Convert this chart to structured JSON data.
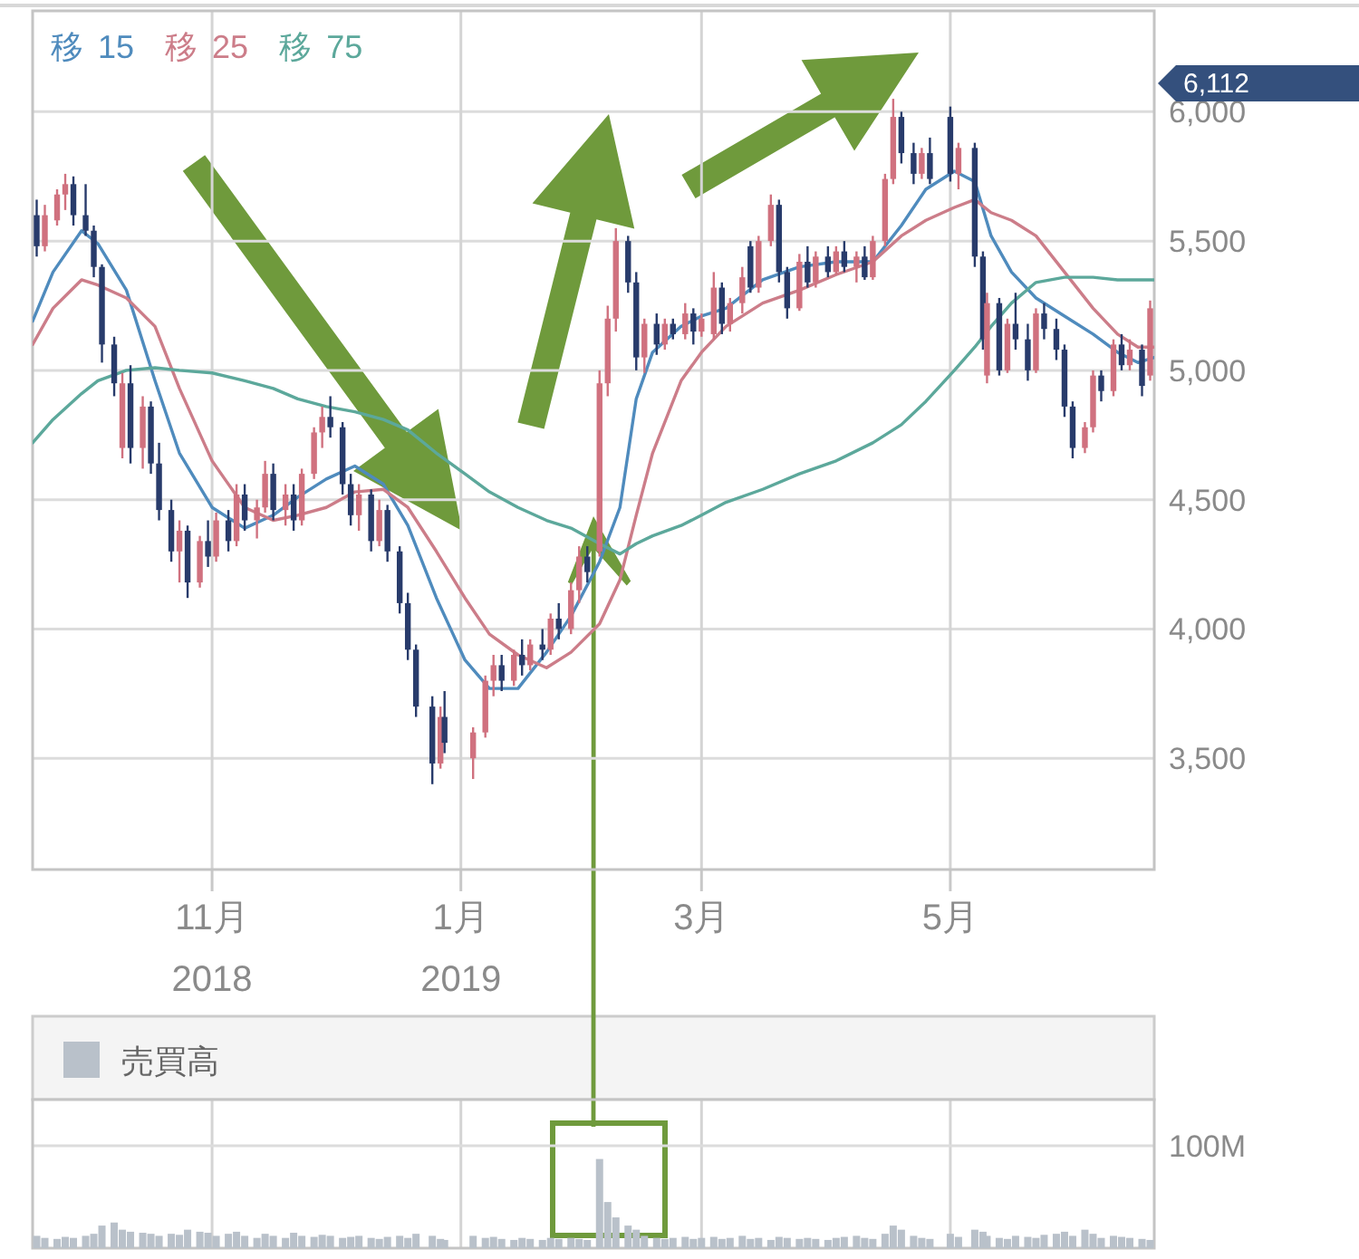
{
  "chart_data": [
    {
      "type": "candlestick",
      "legend": "top left",
      "grid": true,
      "xlim": [
        "2018-09-18",
        "2019-06-20"
      ],
      "xticks": [
        {
          "value": "2018-11-01",
          "label": "11月\n2018"
        },
        {
          "value": "2019-01-01",
          "label": "1月\n2019"
        },
        {
          "value": "2019-03-01",
          "label": "3月"
        },
        {
          "value": "2019-05-01",
          "label": "5月"
        }
      ],
      "ylim": [
        3070,
        6390
      ],
      "yticks": [
        {
          "value": 3500,
          "label": "3,500"
        },
        {
          "value": 4000,
          "label": "4,000"
        },
        {
          "value": 4500,
          "label": "4,500"
        },
        {
          "value": 5000,
          "label": "5,000"
        },
        {
          "value": 5500,
          "label": "5,500"
        },
        {
          "value": 6000,
          "label": "6,000"
        }
      ],
      "annotations": [
        "6,112"
      ],
      "x": [
        "2018-09-19",
        "2018-09-21",
        "2018-09-24",
        "2018-09-26",
        "2018-09-28",
        "2018-10-01",
        "2018-10-03",
        "2018-10-05",
        "2018-10-08",
        "2018-10-10",
        "2018-10-12",
        "2018-10-15",
        "2018-10-17",
        "2018-10-19",
        "2018-10-22",
        "2018-10-24",
        "2018-10-26",
        "2018-10-29",
        "2018-10-31",
        "2018-11-02",
        "2018-11-05",
        "2018-11-07",
        "2018-11-09",
        "2018-11-12",
        "2018-11-14",
        "2018-11-16",
        "2018-11-19",
        "2018-11-21",
        "2018-11-23",
        "2018-11-26",
        "2018-11-28",
        "2018-11-30",
        "2018-12-03",
        "2018-12-05",
        "2018-12-07",
        "2018-12-10",
        "2018-12-12",
        "2018-12-14",
        "2018-12-17",
        "2018-12-19",
        "2018-12-21",
        "2018-12-25",
        "2018-12-27",
        "2018-12-28",
        "2019-01-04",
        "2019-01-07",
        "2019-01-09",
        "2019-01-11",
        "2019-01-14",
        "2019-01-16",
        "2019-01-18",
        "2019-01-21",
        "2019-01-23",
        "2019-01-25",
        "2019-01-28",
        "2019-01-30",
        "2019-02-01",
        "2019-02-04",
        "2019-02-06",
        "2019-02-08",
        "2019-02-11",
        "2019-02-13",
        "2019-02-15",
        "2019-02-18",
        "2019-02-20",
        "2019-02-22",
        "2019-02-25",
        "2019-02-27",
        "2019-03-01",
        "2019-03-04",
        "2019-03-06",
        "2019-03-08",
        "2019-03-11",
        "2019-03-13",
        "2019-03-15",
        "2019-03-18",
        "2019-03-20",
        "2019-03-22",
        "2019-03-25",
        "2019-03-27",
        "2019-03-29",
        "2019-04-01",
        "2019-04-03",
        "2019-04-05",
        "2019-04-08",
        "2019-04-10",
        "2019-04-12",
        "2019-04-15",
        "2019-04-17",
        "2019-04-19",
        "2019-04-22",
        "2019-04-24",
        "2019-04-26",
        "2019-05-01",
        "2019-05-03",
        "2019-05-07",
        "2019-05-09",
        "2019-05-10",
        "2019-05-13",
        "2019-05-15",
        "2019-05-17",
        "2019-05-20",
        "2019-05-22",
        "2019-05-24",
        "2019-05-27",
        "2019-05-29",
        "2019-05-31",
        "2019-06-03",
        "2019-06-05",
        "2019-06-07",
        "2019-06-10",
        "2019-06-12",
        "2019-06-14",
        "2019-06-17",
        "2019-06-19"
      ],
      "ohlc": [
        [
          5600,
          5660,
          5440,
          5480
        ],
        [
          5480,
          5640,
          5460,
          5600
        ],
        [
          5580,
          5700,
          5560,
          5680
        ],
        [
          5680,
          5760,
          5620,
          5720
        ],
        [
          5720,
          5750,
          5560,
          5600
        ],
        [
          5600,
          5720,
          5520,
          5540
        ],
        [
          5540,
          5560,
          5360,
          5400
        ],
        [
          5400,
          5410,
          5030,
          5100
        ],
        [
          5100,
          5130,
          4900,
          4950
        ],
        [
          4700,
          4990,
          4660,
          4950
        ],
        [
          4950,
          5020,
          4640,
          4700
        ],
        [
          4700,
          4900,
          4620,
          4860
        ],
        [
          4860,
          4880,
          4600,
          4640
        ],
        [
          4640,
          4720,
          4420,
          4460
        ],
        [
          4460,
          4500,
          4260,
          4300
        ],
        [
          4300,
          4420,
          4180,
          4380
        ],
        [
          4380,
          4400,
          4120,
          4180
        ],
        [
          4180,
          4360,
          4160,
          4340
        ],
        [
          4340,
          4420,
          4240,
          4280
        ],
        [
          4280,
          4450,
          4260,
          4420
        ],
        [
          4420,
          4460,
          4300,
          4340
        ],
        [
          4340,
          4560,
          4320,
          4520
        ],
        [
          4520,
          4560,
          4380,
          4420
        ],
        [
          4420,
          4500,
          4350,
          4470
        ],
        [
          4470,
          4650,
          4450,
          4600
        ],
        [
          4600,
          4640,
          4420,
          4460
        ],
        [
          4460,
          4560,
          4400,
          4520
        ],
        [
          4520,
          4560,
          4380,
          4420
        ],
        [
          4420,
          4620,
          4400,
          4600
        ],
        [
          4600,
          4780,
          4580,
          4760
        ],
        [
          4760,
          4860,
          4700,
          4820
        ],
        [
          4820,
          4900,
          4740,
          4780
        ],
        [
          4780,
          4800,
          4520,
          4560
        ],
        [
          4560,
          4600,
          4400,
          4440
        ],
        [
          4440,
          4560,
          4380,
          4520
        ],
        [
          4520,
          4540,
          4300,
          4340
        ],
        [
          4340,
          4500,
          4320,
          4460
        ],
        [
          4460,
          4480,
          4260,
          4300
        ],
        [
          4300,
          4320,
          4060,
          4100
        ],
        [
          4100,
          4140,
          3880,
          3920
        ],
        [
          3920,
          3940,
          3660,
          3700
        ],
        [
          3700,
          3740,
          3400,
          3480
        ],
        [
          3480,
          3700,
          3460,
          3660
        ],
        [
          3660,
          3760,
          3520,
          3560
        ],
        [
          3500,
          3620,
          3420,
          3600
        ],
        [
          3600,
          3820,
          3580,
          3800
        ],
        [
          3800,
          3900,
          3740,
          3860
        ],
        [
          3860,
          3900,
          3760,
          3800
        ],
        [
          3800,
          3920,
          3780,
          3900
        ],
        [
          3900,
          3960,
          3820,
          3860
        ],
        [
          3860,
          3960,
          3840,
          3940
        ],
        [
          3940,
          4000,
          3880,
          3920
        ],
        [
          3920,
          4060,
          3900,
          4040
        ],
        [
          4040,
          4100,
          3960,
          4000
        ],
        [
          4000,
          4180,
          3980,
          4150
        ],
        [
          4150,
          4320,
          4100,
          4280
        ],
        [
          4280,
          4320,
          4180,
          4220
        ],
        [
          4300,
          5000,
          4280,
          4950
        ],
        [
          4950,
          5250,
          4900,
          5200
        ],
        [
          5200,
          5550,
          5150,
          5500
        ],
        [
          5500,
          5520,
          5300,
          5340
        ],
        [
          5340,
          5380,
          5000,
          5050
        ],
        [
          5050,
          5200,
          4990,
          5180
        ],
        [
          5180,
          5220,
          5060,
          5100
        ],
        [
          5100,
          5200,
          5080,
          5180
        ],
        [
          5180,
          5200,
          5120,
          5140
        ],
        [
          5140,
          5260,
          5120,
          5220
        ],
        [
          5220,
          5240,
          5100,
          5150
        ],
        [
          5150,
          5220,
          5130,
          5200
        ],
        [
          5140,
          5380,
          5120,
          5320
        ],
        [
          5320,
          5340,
          5140,
          5180
        ],
        [
          5180,
          5280,
          5150,
          5260
        ],
        [
          5260,
          5400,
          5220,
          5360
        ],
        [
          5480,
          5500,
          5300,
          5320
        ],
        [
          5320,
          5520,
          5300,
          5500
        ],
        [
          5500,
          5680,
          5480,
          5640
        ],
        [
          5640,
          5660,
          5340,
          5380
        ],
        [
          5380,
          5400,
          5200,
          5240
        ],
        [
          5240,
          5450,
          5230,
          5420
        ],
        [
          5420,
          5480,
          5320,
          5340
        ],
        [
          5340,
          5460,
          5320,
          5440
        ],
        [
          5440,
          5480,
          5360,
          5380
        ],
        [
          5380,
          5480,
          5370,
          5460
        ],
        [
          5460,
          5500,
          5380,
          5400
        ],
        [
          5400,
          5460,
          5340,
          5440
        ],
        [
          5440,
          5480,
          5350,
          5360
        ],
        [
          5360,
          5520,
          5350,
          5500
        ],
        [
          5500,
          5760,
          5480,
          5740
        ],
        [
          5740,
          6050,
          5720,
          5980
        ],
        [
          5980,
          6000,
          5800,
          5840
        ],
        [
          5840,
          5880,
          5720,
          5760
        ],
        [
          5760,
          5860,
          5740,
          5840
        ],
        [
          5840,
          5900,
          5720,
          5740
        ],
        [
          5980,
          6020,
          5730,
          5760
        ],
        [
          5760,
          5880,
          5700,
          5860
        ],
        [
          5860,
          5880,
          5400,
          5440
        ],
        [
          5440,
          5460,
          5080,
          5120
        ],
        [
          4980,
          5300,
          4950,
          5260
        ],
        [
          5260,
          5280,
          4980,
          5000
        ],
        [
          5000,
          5200,
          4990,
          5180
        ],
        [
          5180,
          5300,
          5080,
          5120
        ],
        [
          5120,
          5180,
          4960,
          5000
        ],
        [
          5000,
          5240,
          4990,
          5220
        ],
        [
          5220,
          5260,
          5120,
          5160
        ],
        [
          5160,
          5200,
          5040,
          5080
        ],
        [
          5080,
          5100,
          4820,
          4860
        ],
        [
          4860,
          4880,
          4660,
          4700
        ],
        [
          4700,
          4800,
          4680,
          4780
        ],
        [
          4780,
          5000,
          4760,
          4980
        ],
        [
          4980,
          5000,
          4880,
          4920
        ],
        [
          4920,
          5120,
          4900,
          5100
        ],
        [
          5100,
          5140,
          5000,
          5020
        ],
        [
          5020,
          5120,
          5000,
          5080
        ],
        [
          5080,
          5100,
          4900,
          4940
        ],
        [
          4980,
          5270,
          4960,
          5240
        ]
      ],
      "colors": [
        "#283b6b",
        "#d0717f",
        "#d0717f",
        "#d0717f",
        "#283b6b",
        "#283b6b",
        "#283b6b",
        "#283b6b",
        "#283b6b",
        "#d0717f",
        "#283b6b",
        "#d0717f",
        "#283b6b",
        "#283b6b",
        "#283b6b",
        "#d0717f",
        "#283b6b",
        "#d0717f",
        "#283b6b",
        "#d0717f",
        "#283b6b",
        "#d0717f",
        "#283b6b",
        "#d0717f",
        "#d0717f",
        "#283b6b",
        "#d0717f",
        "#283b6b",
        "#d0717f",
        "#d0717f",
        "#d0717f",
        "#283b6b",
        "#283b6b",
        "#283b6b",
        "#d0717f",
        "#283b6b",
        "#d0717f",
        "#283b6b",
        "#283b6b",
        "#283b6b",
        "#283b6b",
        "#283b6b",
        "#d0717f",
        "#283b6b",
        "#d0717f",
        "#d0717f",
        "#d0717f",
        "#283b6b",
        "#d0717f",
        "#283b6b",
        "#d0717f",
        "#283b6b",
        "#d0717f",
        "#283b6b",
        "#d0717f",
        "#d0717f",
        "#283b6b",
        "#d0717f",
        "#d0717f",
        "#d0717f",
        "#283b6b",
        "#283b6b",
        "#d0717f",
        "#283b6b",
        "#d0717f",
        "#283b6b",
        "#d0717f",
        "#283b6b",
        "#d0717f",
        "#d0717f",
        "#283b6b",
        "#d0717f",
        "#d0717f",
        "#283b6b",
        "#d0717f",
        "#d0717f",
        "#283b6b",
        "#283b6b",
        "#d0717f",
        "#283b6b",
        "#d0717f",
        "#283b6b",
        "#d0717f",
        "#283b6b",
        "#d0717f",
        "#283b6b",
        "#d0717f",
        "#d0717f",
        "#d0717f",
        "#283b6b",
        "#283b6b",
        "#d0717f",
        "#283b6b",
        "#283b6b",
        "#d0717f",
        "#283b6b",
        "#283b6b",
        "#d0717f",
        "#283b6b",
        "#d0717f",
        "#283b6b",
        "#283b6b",
        "#d0717f",
        "#283b6b",
        "#283b6b",
        "#283b6b",
        "#283b6b",
        "#d0717f",
        "#d0717f",
        "#283b6b",
        "#d0717f",
        "#283b6b",
        "#d0717f",
        "#283b6b",
        "#d0717f"
      ],
      "series": [
        {
          "type": "line",
          "name": "移 15",
          "color": "#4f8bbd",
          "x": [
            "2018-09-18",
            "2018-09-23",
            "2018-09-30",
            "2018-10-04",
            "2018-10-11",
            "2018-10-18",
            "2018-10-24",
            "2018-11-01",
            "2018-11-09",
            "2018-11-16",
            "2018-11-22",
            "2018-11-29",
            "2018-12-06",
            "2018-12-13",
            "2018-12-19",
            "2018-12-26",
            "2019-01-02",
            "2019-01-08",
            "2019-01-15",
            "2019-01-22",
            "2019-01-28",
            "2019-02-04",
            "2019-02-09",
            "2019-02-13",
            "2019-02-17",
            "2019-02-24",
            "2019-03-01",
            "2019-03-07",
            "2019-03-16",
            "2019-03-25",
            "2019-04-03",
            "2019-04-12",
            "2019-04-19",
            "2019-04-25",
            "2019-05-02",
            "2019-05-07",
            "2019-05-11",
            "2019-05-16",
            "2019-05-22",
            "2019-05-29",
            "2019-06-05",
            "2019-06-11",
            "2019-06-16",
            "2019-06-20"
          ],
          "values": [
            5190,
            5380,
            5540,
            5490,
            5310,
            4960,
            4680,
            4470,
            4390,
            4440,
            4510,
            4580,
            4630,
            4560,
            4400,
            4120,
            3880,
            3770,
            3770,
            3910,
            4050,
            4260,
            4470,
            4890,
            5070,
            5170,
            5210,
            5240,
            5350,
            5400,
            5420,
            5420,
            5560,
            5700,
            5770,
            5730,
            5520,
            5380,
            5280,
            5210,
            5140,
            5070,
            5030,
            5050
          ]
        },
        {
          "type": "line",
          "name": "移 25",
          "color": "#cc7d89",
          "x": [
            "2018-09-18",
            "2018-09-23",
            "2018-09-30",
            "2018-10-04",
            "2018-10-11",
            "2018-10-18",
            "2018-10-24",
            "2018-11-01",
            "2018-11-09",
            "2018-11-16",
            "2018-11-22",
            "2018-11-29",
            "2018-12-06",
            "2018-12-13",
            "2018-12-19",
            "2018-12-26",
            "2019-01-02",
            "2019-01-08",
            "2019-01-15",
            "2019-01-22",
            "2019-01-28",
            "2019-02-04",
            "2019-02-09",
            "2019-02-13",
            "2019-02-17",
            "2019-02-24",
            "2019-03-01",
            "2019-03-07",
            "2019-03-16",
            "2019-03-25",
            "2019-04-03",
            "2019-04-12",
            "2019-04-19",
            "2019-04-25",
            "2019-05-02",
            "2019-05-07",
            "2019-05-11",
            "2019-05-16",
            "2019-05-22",
            "2019-05-29",
            "2019-06-05",
            "2019-06-11",
            "2019-06-16",
            "2019-06-20"
          ],
          "values": [
            5100,
            5240,
            5350,
            5330,
            5280,
            5170,
            4930,
            4650,
            4470,
            4420,
            4440,
            4470,
            4530,
            4540,
            4470,
            4300,
            4120,
            3980,
            3900,
            3850,
            3910,
            4020,
            4190,
            4440,
            4680,
            4960,
            5070,
            5170,
            5260,
            5310,
            5370,
            5420,
            5520,
            5580,
            5630,
            5660,
            5610,
            5580,
            5520,
            5380,
            5240,
            5140,
            5090,
            5090
          ]
        },
        {
          "type": "line",
          "name": "移 75",
          "color": "#5ca89b",
          "x": [
            "2018-09-18",
            "2018-09-23",
            "2018-09-30",
            "2018-10-04",
            "2018-10-11",
            "2018-10-18",
            "2018-10-24",
            "2018-11-01",
            "2018-11-09",
            "2018-11-16",
            "2018-11-22",
            "2018-11-29",
            "2018-12-06",
            "2018-12-13",
            "2018-12-19",
            "2018-12-26",
            "2019-01-02",
            "2019-01-08",
            "2019-01-15",
            "2019-01-22",
            "2019-01-28",
            "2019-02-04",
            "2019-02-09",
            "2019-02-13",
            "2019-02-17",
            "2019-02-24",
            "2019-03-01",
            "2019-03-07",
            "2019-03-16",
            "2019-03-25",
            "2019-04-03",
            "2019-04-12",
            "2019-04-19",
            "2019-04-25",
            "2019-05-02",
            "2019-05-07",
            "2019-05-11",
            "2019-05-16",
            "2019-05-22",
            "2019-05-29",
            "2019-06-05",
            "2019-06-11",
            "2019-06-16",
            "2019-06-20"
          ],
          "values": [
            4720,
            4810,
            4910,
            4960,
            5000,
            5010,
            5000,
            4990,
            4960,
            4930,
            4890,
            4860,
            4840,
            4810,
            4770,
            4680,
            4600,
            4530,
            4470,
            4420,
            4390,
            4330,
            4290,
            4330,
            4360,
            4400,
            4440,
            4490,
            4540,
            4600,
            4650,
            4720,
            4790,
            4880,
            5000,
            5090,
            5170,
            5260,
            5340,
            5360,
            5360,
            5350,
            5350,
            5350
          ]
        }
      ]
    },
    {
      "type": "bar",
      "legend": "top left",
      "grid": "x",
      "tick_labels": "y",
      "ref_lines": [
        {
          "axis": "y",
          "value": 100
        }
      ],
      "xlim": [
        "2018-09-18",
        "2019-06-20"
      ],
      "xticks": [
        {
          "value": "2018-11-01",
          "label": null
        },
        {
          "value": "2019-01-01",
          "label": null
        },
        {
          "value": "2019-03-01",
          "label": null
        },
        {
          "value": "2019-05-01",
          "label": null
        }
      ],
      "ylim": [
        0,
        145
      ],
      "yticks": [
        {
          "value": 100,
          "label": "100M"
        }
      ],
      "x": [
        "2018-09-19",
        "2018-09-21",
        "2018-09-24",
        "2018-09-26",
        "2018-09-28",
        "2018-10-01",
        "2018-10-03",
        "2018-10-05",
        "2018-10-08",
        "2018-10-10",
        "2018-10-12",
        "2018-10-15",
        "2018-10-17",
        "2018-10-19",
        "2018-10-22",
        "2018-10-24",
        "2018-10-26",
        "2018-10-29",
        "2018-10-31",
        "2018-11-02",
        "2018-11-05",
        "2018-11-07",
        "2018-11-09",
        "2018-11-12",
        "2018-11-14",
        "2018-11-16",
        "2018-11-19",
        "2018-11-21",
        "2018-11-23",
        "2018-11-26",
        "2018-11-28",
        "2018-11-30",
        "2018-12-03",
        "2018-12-05",
        "2018-12-07",
        "2018-12-10",
        "2018-12-12",
        "2018-12-14",
        "2018-12-17",
        "2018-12-19",
        "2018-12-21",
        "2018-12-25",
        "2018-12-27",
        "2018-12-28",
        "2019-01-04",
        "2019-01-07",
        "2019-01-09",
        "2019-01-11",
        "2019-01-14",
        "2019-01-16",
        "2019-01-18",
        "2019-01-21",
        "2019-01-23",
        "2019-01-25",
        "2019-01-28",
        "2019-01-30",
        "2019-02-01",
        "2019-02-04",
        "2019-02-06",
        "2019-02-08",
        "2019-02-11",
        "2019-02-13",
        "2019-02-15",
        "2019-02-18",
        "2019-02-20",
        "2019-02-22",
        "2019-02-25",
        "2019-02-27",
        "2019-03-01",
        "2019-03-04",
        "2019-03-06",
        "2019-03-08",
        "2019-03-11",
        "2019-03-13",
        "2019-03-15",
        "2019-03-18",
        "2019-03-20",
        "2019-03-22",
        "2019-03-25",
        "2019-03-27",
        "2019-03-29",
        "2019-04-01",
        "2019-04-03",
        "2019-04-05",
        "2019-04-08",
        "2019-04-10",
        "2019-04-12",
        "2019-04-15",
        "2019-04-17",
        "2019-04-19",
        "2019-04-22",
        "2019-04-24",
        "2019-04-26",
        "2019-05-01",
        "2019-05-03",
        "2019-05-07",
        "2019-05-09",
        "2019-05-10",
        "2019-05-13",
        "2019-05-15",
        "2019-05-17",
        "2019-05-20",
        "2019-05-22",
        "2019-05-24",
        "2019-05-27",
        "2019-05-29",
        "2019-05-31",
        "2019-06-03",
        "2019-06-05",
        "2019-06-07",
        "2019-06-10",
        "2019-06-12",
        "2019-06-14",
        "2019-06-17",
        "2019-06-19"
      ],
      "series": [
        {
          "name": "売買高",
          "color": "#b9c1ca",
          "values": [
            12,
            10,
            9,
            11,
            10,
            12,
            14,
            22,
            25,
            18,
            16,
            15,
            14,
            12,
            14,
            13,
            18,
            16,
            15,
            12,
            14,
            16,
            12,
            10,
            14,
            12,
            10,
            15,
            12,
            11,
            13,
            12,
            10,
            11,
            12,
            10,
            9,
            11,
            12,
            10,
            14,
            12,
            9,
            8,
            12,
            10,
            11,
            9,
            8,
            10,
            9,
            8,
            10,
            9,
            10,
            9,
            8,
            87,
            45,
            30,
            22,
            18,
            12,
            10,
            9,
            10,
            11,
            9,
            10,
            11,
            9,
            10,
            12,
            9,
            10,
            8,
            11,
            10,
            9,
            10,
            9,
            8,
            10,
            11,
            12,
            10,
            9,
            14,
            22,
            18,
            12,
            10,
            9,
            14,
            11,
            18,
            16,
            12,
            10,
            9,
            12,
            11,
            10,
            13,
            14,
            16,
            12,
            18,
            14,
            10,
            12,
            11,
            10,
            9,
            8
          ]
        }
      ]
    }
  ]
}
